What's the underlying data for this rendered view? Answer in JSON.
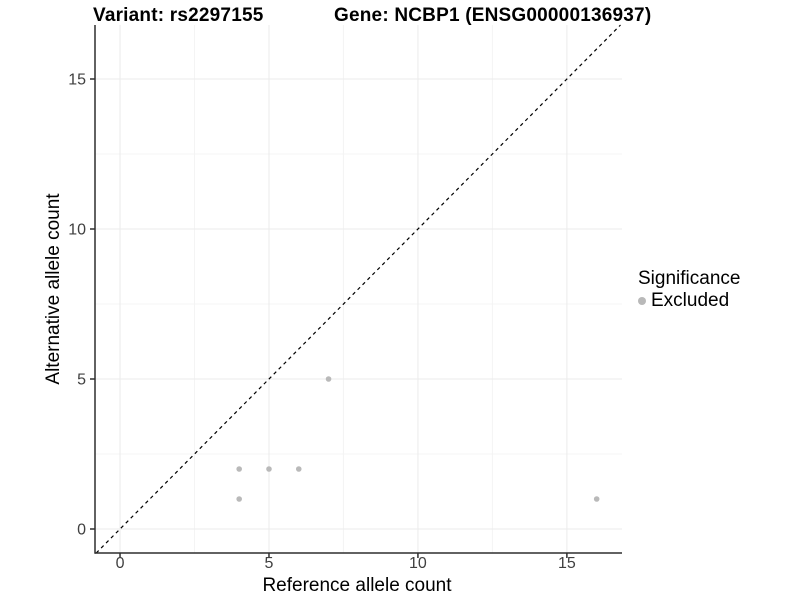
{
  "titles": {
    "left": "Variant: rs2297155",
    "right": "Gene: NCBP1 (ENSG00000136937)"
  },
  "chart_data": {
    "type": "scatter",
    "title": "Variant: rs2297155   Gene: NCBP1 (ENSG00000136937)",
    "xlabel": "Reference allele count",
    "ylabel": "Alternative allele count",
    "xlim": [
      -0.84,
      16.85
    ],
    "ylim": [
      -0.8,
      16.8
    ],
    "x_ticks": [
      0,
      5,
      10,
      15
    ],
    "y_ticks": [
      0,
      5,
      10,
      15
    ],
    "x_minor": [
      2.5,
      7.5,
      12.5
    ],
    "y_minor": [
      2.5,
      7.5,
      12.5
    ],
    "grid": true,
    "series": [
      {
        "name": "Excluded",
        "points": [
          [
            4,
            1
          ],
          [
            4,
            2
          ],
          [
            5,
            2
          ],
          [
            6,
            2
          ],
          [
            7,
            5
          ],
          [
            16,
            1
          ]
        ]
      }
    ],
    "abline": {
      "slope": 1,
      "intercept": 0,
      "linetype": "dashed",
      "color": "#000000"
    },
    "legend": {
      "title": "Significance",
      "position": "right",
      "items": [
        {
          "label": "Excluded",
          "color": "#b9b9b9"
        }
      ]
    },
    "colors": {
      "point": "#b9b9b9",
      "grid_major": "#ebebeb",
      "grid_minor": "#f4f4f4",
      "axis": "#2e2e2e",
      "tick_label": "#404040"
    },
    "point_radius": 2.8
  }
}
